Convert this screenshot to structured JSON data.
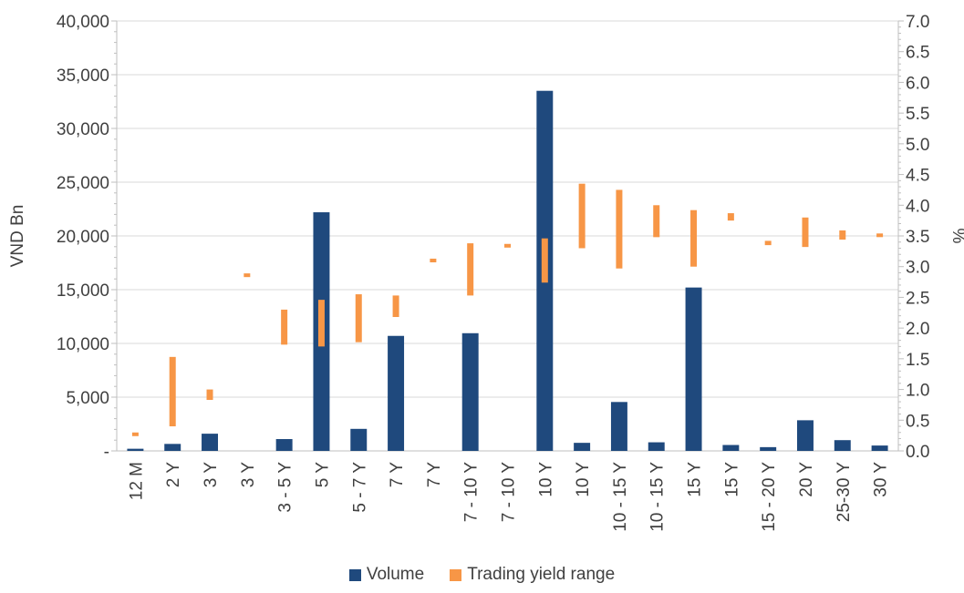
{
  "chart_data": {
    "type": "bar",
    "categories": [
      "12 M",
      "2 Y",
      "3 Y",
      "3 Y",
      "3 - 5 Y",
      "5 Y",
      "5 - 7 Y",
      "7 Y",
      "7 Y",
      "7 - 10 Y",
      "7 - 10 Y",
      "10 Y",
      "10 Y",
      "10 - 15 Y",
      "10 - 15 Y",
      "15 Y",
      "15 Y",
      "15 - 20 Y",
      "20 Y",
      "25-30 Y",
      "30 Y"
    ],
    "series": [
      {
        "name": "Volume",
        "axis": "left",
        "color": "#1f497d",
        "values": [
          200,
          650,
          1600,
          0,
          1100,
          22200,
          2050,
          10700,
          0,
          10950,
          0,
          33500,
          750,
          4550,
          800,
          15200,
          550,
          350,
          2850,
          1000,
          500
        ]
      },
      {
        "name": "Trading yield range",
        "axis": "right",
        "color": "#f79646",
        "ranges": [
          [
            0.25,
            0.3
          ],
          [
            0.4,
            1.53
          ],
          [
            0.83,
            1.0
          ],
          [
            2.83,
            2.89
          ],
          [
            1.73,
            2.3
          ],
          [
            1.7,
            2.46
          ],
          [
            1.77,
            2.55
          ],
          [
            2.18,
            2.53
          ],
          [
            3.07,
            3.13
          ],
          [
            2.53,
            3.38
          ],
          [
            3.31,
            3.37
          ],
          [
            2.74,
            3.46
          ],
          [
            3.3,
            4.35
          ],
          [
            2.97,
            4.25
          ],
          [
            3.48,
            4.0
          ],
          [
            3.0,
            3.92
          ],
          [
            3.75,
            3.87
          ],
          [
            3.35,
            3.42
          ],
          [
            3.32,
            3.8
          ],
          [
            3.44,
            3.59
          ],
          [
            3.49,
            3.54
          ]
        ]
      }
    ],
    "y_left": {
      "label": "VND Bn",
      "min": 0,
      "max": 40000,
      "ticks": [
        "-",
        "5,000",
        "10,000",
        "15,000",
        "20,000",
        "25,000",
        "30,000",
        "35,000",
        "40,000"
      ]
    },
    "y_right": {
      "label": "%",
      "min": 0,
      "max": 7,
      "ticks": [
        "0.0",
        "0.5",
        "1.0",
        "1.5",
        "2.0",
        "2.5",
        "3.0",
        "3.5",
        "4.0",
        "4.5",
        "5.0",
        "5.5",
        "6.0",
        "6.5",
        "7.0"
      ]
    },
    "grid": true,
    "legend_position": "bottom"
  },
  "legend": {
    "volume_label": "Volume",
    "yield_label": "Trading yield range"
  }
}
